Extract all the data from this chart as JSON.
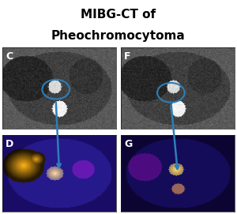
{
  "title_line1": "MIBG-CT of",
  "title_line2": "Pheochromocytoma",
  "title_fontsize": 11,
  "title_fontweight": "bold",
  "bg_color": "#ffffff",
  "panel_labels": [
    "C",
    "F",
    "D",
    "G"
  ],
  "label_color": "#ffffff",
  "label_fontsize": 9,
  "arrow_color": "#2e7eb8",
  "circle_color": "#2e7eb8",
  "circle_linewidth": 1.5,
  "arrow_linewidth": 1.8,
  "panel_border_color": "#1a1a1a",
  "ct_bg": "#888888",
  "mibg_bg_left": "#220055",
  "mibg_bg_right": "#110033"
}
